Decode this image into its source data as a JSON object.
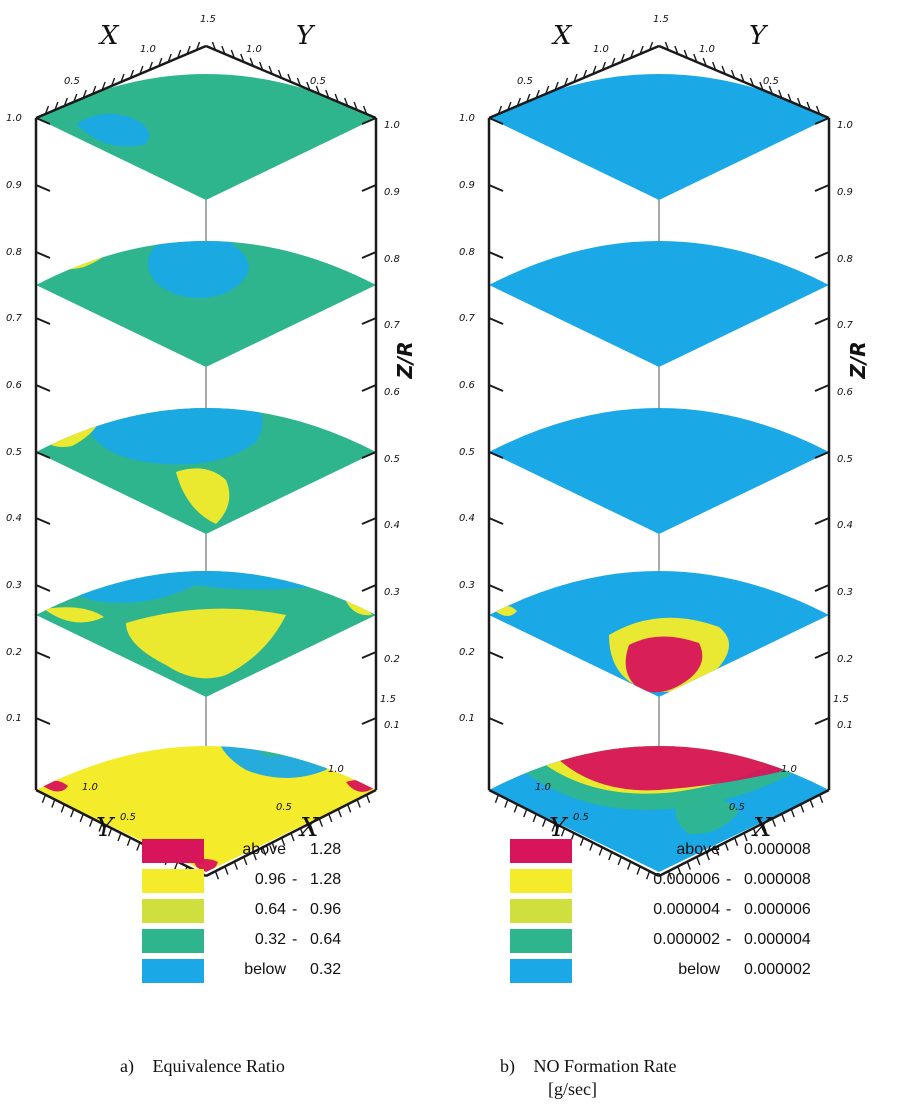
{
  "colors": {
    "red": "#d8145a",
    "yellow": "#f4ec2a",
    "yellow_green": "#cfe03e",
    "green": "#2fb58e",
    "blue": "#1aa9e6",
    "axis": "#1a1a1a"
  },
  "panel_a": {
    "caption_letter": "a)",
    "caption_text": "Equivalence Ratio",
    "axis": {
      "x_label": "X",
      "y_label": "Y",
      "z_label": "Z/R"
    },
    "top_ticks": {
      "x": [
        "0.5",
        "1.0"
      ],
      "y": [
        "1.0",
        "0.5"
      ],
      "apex": "1.5"
    },
    "bottom_ticks": {
      "y": [
        "1.0",
        "0.5"
      ],
      "x": [
        "1.0",
        "0.5"
      ],
      "corner": "1.5"
    },
    "z_ticks_left": [
      "1.0",
      "0.9",
      "0.8",
      "0.7",
      "0.6",
      "0.5",
      "0.4",
      "0.3",
      "0.2",
      "0.1"
    ],
    "z_ticks_right": [
      "1.0",
      "0.9",
      "0.8",
      "0.7",
      "0.6",
      "0.5",
      "0.4",
      "0.3",
      "0.2",
      "0.1"
    ],
    "legend": [
      {
        "color": "red",
        "prefix": "above",
        "value": "1.28"
      },
      {
        "color": "yellow",
        "prefix": "0.96",
        "dash": "-",
        "value": "1.28"
      },
      {
        "color": "yellow_green",
        "prefix": "0.64",
        "dash": "-",
        "value": "0.96"
      },
      {
        "color": "green",
        "prefix": "0.32",
        "dash": "-",
        "value": "0.64"
      },
      {
        "color": "blue",
        "prefix": "below",
        "value": "0.32"
      }
    ],
    "slices": [
      {
        "level": 1.0,
        "base": "green",
        "patches": [
          "blue"
        ]
      },
      {
        "level": 0.75,
        "base": "green",
        "patches": [
          "yellow",
          "blue"
        ]
      },
      {
        "level": 0.5,
        "base": "green",
        "patches": [
          "blue",
          "yellow"
        ]
      },
      {
        "level": 0.3,
        "base": "green",
        "patches": [
          "blue",
          "yellow"
        ]
      },
      {
        "level": 0.0,
        "base": "yellow",
        "patches": [
          "blue",
          "green",
          "red"
        ]
      }
    ]
  },
  "panel_b": {
    "caption_letter": "b)",
    "caption_text": "NO Formation Rate",
    "caption_unit": "[g/sec]",
    "axis": {
      "x_label": "X",
      "y_label": "Y",
      "z_label": "Z/R"
    },
    "top_ticks": {
      "x": [
        "0.5",
        "1.0"
      ],
      "y": [
        "1.0",
        "0.5"
      ],
      "apex": "1.5"
    },
    "bottom_ticks": {
      "y": [
        "1.0",
        "0.5"
      ],
      "x": [
        "1.0",
        "0.5"
      ],
      "corner": "1.5"
    },
    "z_ticks_left": [
      "1.0",
      "0.9",
      "0.8",
      "0.7",
      "0.6",
      "0.5",
      "0.4",
      "0.3",
      "0.2",
      "0.1"
    ],
    "z_ticks_right": [
      "1.0",
      "0.9",
      "0.8",
      "0.7",
      "0.6",
      "0.5",
      "0.4",
      "0.3",
      "0.2",
      "0.1"
    ],
    "legend": [
      {
        "color": "red",
        "prefix": "above",
        "value": "0.000008"
      },
      {
        "color": "yellow",
        "prefix": "0.000006",
        "dash": "-",
        "value": "0.000008"
      },
      {
        "color": "yellow_green",
        "prefix": "0.000004",
        "dash": "-",
        "value": "0.000006"
      },
      {
        "color": "green",
        "prefix": "0.000002",
        "dash": "-",
        "value": "0.000004"
      },
      {
        "color": "blue",
        "prefix": "below",
        "value": "0.000002"
      }
    ],
    "slices": [
      {
        "level": 1.0,
        "base": "blue",
        "patches": []
      },
      {
        "level": 0.75,
        "base": "blue",
        "patches": []
      },
      {
        "level": 0.5,
        "base": "blue",
        "patches": []
      },
      {
        "level": 0.3,
        "base": "blue",
        "patches": [
          "yellow",
          "red"
        ]
      },
      {
        "level": 0.0,
        "base": "blue",
        "patches": [
          "yellow",
          "red",
          "green"
        ]
      }
    ]
  }
}
